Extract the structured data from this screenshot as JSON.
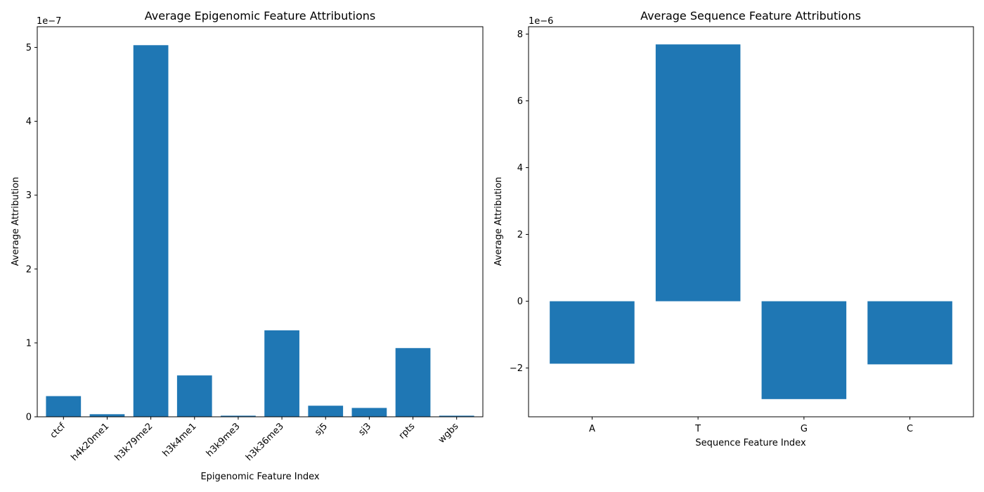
{
  "chart_data": [
    {
      "type": "bar",
      "title": "Average Epigenomic Feature Attributions",
      "xlabel": "Epigenomic Feature Index",
      "ylabel": "Average Attribution",
      "scale_label": "1e−7",
      "scale": 1e-07,
      "categories": [
        "ctcf",
        "h4k20me1",
        "h3k79me2",
        "h3k4me1",
        "h3k9me3",
        "h3k36me3",
        "sj5",
        "sj3",
        "rpts",
        "wgbs"
      ],
      "values": [
        2.8e-08,
        3.5e-09,
        5.03e-07,
        5.6e-08,
        1.5e-09,
        1.17e-07,
        1.5e-08,
        1.2e-08,
        9.3e-08,
        1.5e-09
      ],
      "ylim": [
        0,
        5.28e-07
      ],
      "yticks": [
        0,
        1,
        2,
        3,
        4,
        5
      ],
      "bar_color": "#1f77b4",
      "grid": false,
      "xtick_rotation": 45
    },
    {
      "type": "bar",
      "title": "Average Sequence Feature Attributions",
      "xlabel": "Sequence Feature Index",
      "ylabel": "Average Attribution",
      "scale_label": "1e−6",
      "scale": 1e-06,
      "categories": [
        "A",
        "T",
        "G",
        "C"
      ],
      "values": [
        -1.87e-06,
        7.69e-06,
        -2.93e-06,
        -1.89e-06
      ],
      "ylim": [
        -3.46e-06,
        8.22e-06
      ],
      "yticks": [
        -2,
        0,
        2,
        4,
        6,
        8
      ],
      "bar_color": "#1f77b4",
      "grid": false,
      "xtick_rotation": 0
    }
  ]
}
